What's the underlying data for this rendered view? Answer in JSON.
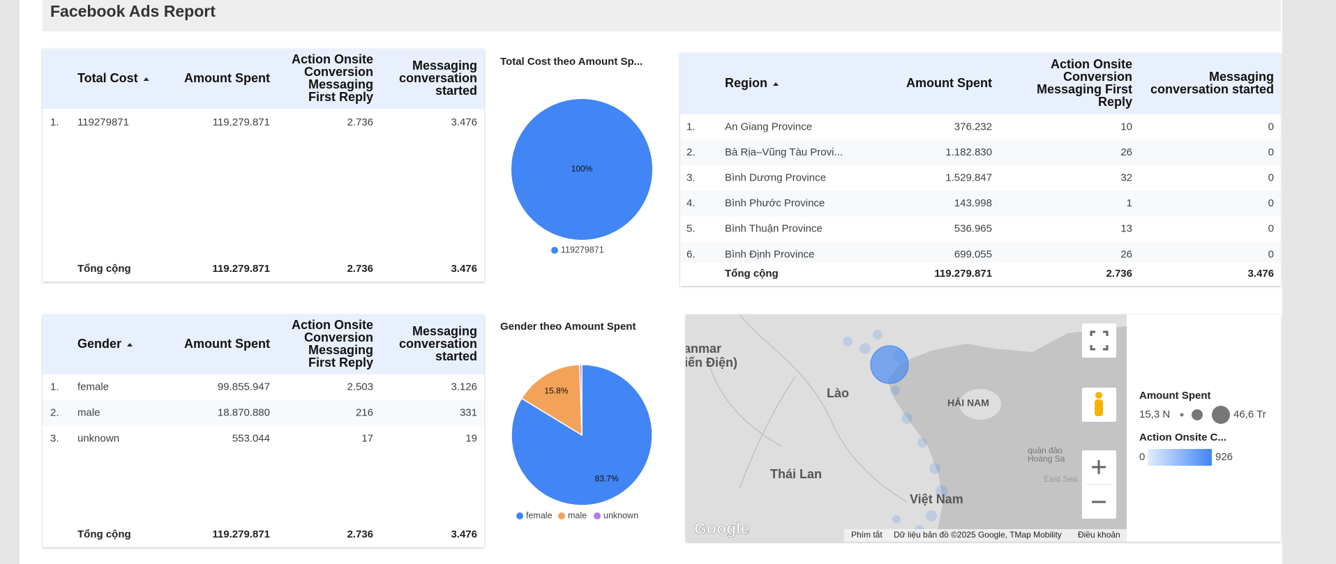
{
  "header": {
    "title": "Facebook Ads Report"
  },
  "cost_table": {
    "headers": [
      [
        "Total Cost"
      ],
      [
        "Amount Spent"
      ],
      [
        "Action Onsite",
        "Conversion",
        "Messaging",
        "First Reply"
      ],
      [
        "Messaging",
        "conversation",
        "started"
      ]
    ],
    "rows": [
      [
        "1.",
        "119279871",
        "119.279.871",
        "2.736",
        "3.476"
      ]
    ],
    "total": [
      "Tổng cộng",
      "119.279.871",
      "2.736",
      "3.476"
    ]
  },
  "cost_pie": {
    "type": "pie",
    "title": "Total Cost theo Amount Sp...",
    "categories": [
      "119279871"
    ],
    "values": [
      100
    ],
    "value_labels": [
      "100%"
    ],
    "colors": [
      "#4285f4"
    ]
  },
  "region_table": {
    "headers": [
      [
        "Region"
      ],
      [
        "Amount Spent"
      ],
      [
        "Action Onsite",
        "Conversion",
        "Messaging First",
        "Reply"
      ],
      [
        "Messaging",
        "conversation started"
      ]
    ],
    "rows": [
      [
        "1.",
        "An Giang Province",
        "376.232",
        "10",
        "0"
      ],
      [
        "2.",
        "Bà Rịa–Vũng Tàu Provi...",
        "1.182.830",
        "26",
        "0"
      ],
      [
        "3.",
        "Bình Dương Province",
        "1.529.847",
        "32",
        "0"
      ],
      [
        "4.",
        "Bình Phước Province",
        "143.998",
        "1",
        "0"
      ],
      [
        "5.",
        "Bình Thuận Province",
        "536.965",
        "13",
        "0"
      ],
      [
        "6.",
        "Bình Định Province",
        "699.055",
        "26",
        "0"
      ]
    ],
    "total": [
      "Tổng cộng",
      "119.279.871",
      "2.736",
      "3.476"
    ]
  },
  "gender_table": {
    "headers": [
      [
        "Gender"
      ],
      [
        "Amount Spent"
      ],
      [
        "Action Onsite",
        "Conversion",
        "Messaging",
        "First Reply"
      ],
      [
        "Messaging",
        "conversation",
        "started"
      ]
    ],
    "rows": [
      [
        "1.",
        "female",
        "99.855.947",
        "2.503",
        "3.126"
      ],
      [
        "2.",
        "male",
        "18.870.880",
        "216",
        "331"
      ],
      [
        "3.",
        "unknown",
        "553.044",
        "17",
        "19"
      ]
    ],
    "total": [
      "Tổng cộng",
      "119.279.871",
      "2.736",
      "3.476"
    ]
  },
  "gender_pie": {
    "type": "pie",
    "title": "Gender theo Amount Spent",
    "categories": [
      "female",
      "male",
      "unknown"
    ],
    "values": [
      83.7,
      15.8,
      0.5
    ],
    "value_labels": [
      "83.7%",
      "15.8%",
      null
    ],
    "colors": [
      "#4285f4",
      "#f4a259",
      "#ab7ef0"
    ]
  },
  "map": {
    "place_labels": [
      "Myanmar",
      "(Miến Điện)",
      "Lào",
      "HẢI NAM",
      "quần đảo",
      "Hoàng Sa",
      "East Sea",
      "Thái Lan",
      "Việt Nam"
    ],
    "logo": "Google",
    "attribution": [
      "Phím tắt",
      "Dữ liệu bản đồ ©2025 Google, TMap Mobility",
      "Điều khoản"
    ],
    "legend": {
      "size_title": "Amount Spent",
      "size_min": "15,3 N",
      "size_max": "46,6 Tr",
      "color_title": "Action Onsite C...",
      "color_min": 0,
      "color_max": 926
    }
  }
}
